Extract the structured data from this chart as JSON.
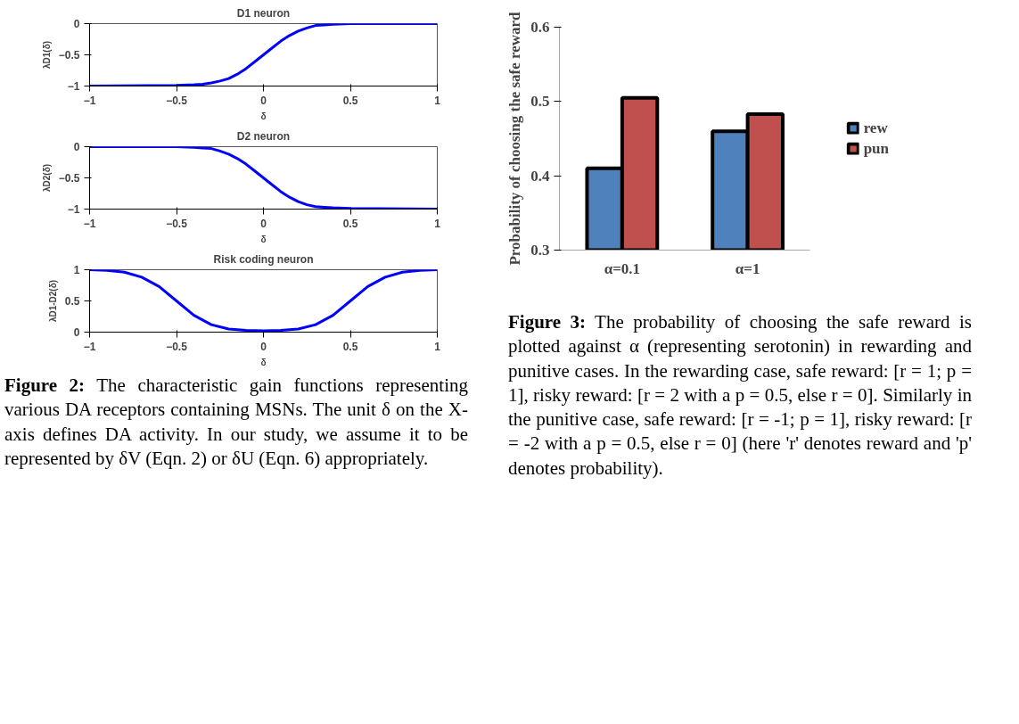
{
  "chart_data": [
    {
      "type": "line",
      "title": "D1 neuron",
      "xlabel": "δ",
      "ylabel": "λD1(δ)",
      "xlim": [
        -1,
        1
      ],
      "xticks": [
        -1,
        -0.5,
        0,
        0.5,
        1
      ],
      "ylim": [
        -1,
        0
      ],
      "yticks": [
        -1,
        -0.5,
        0
      ],
      "grid": false,
      "marker": "none",
      "line_style": "solid",
      "series": [
        {
          "color": "#0000ff",
          "x": [
            -1,
            -0.5,
            -0.4,
            -0.35,
            -0.3,
            -0.25,
            -0.2,
            -0.15,
            -0.1,
            -0.05,
            0,
            0.05,
            0.1,
            0.15,
            0.2,
            0.25,
            0.3,
            0.35,
            0.4,
            0.5,
            1
          ],
          "values": [
            -1,
            -0.99,
            -0.98,
            -0.97,
            -0.95,
            -0.92,
            -0.88,
            -0.81,
            -0.72,
            -0.61,
            -0.5,
            -0.39,
            -0.28,
            -0.19,
            -0.12,
            -0.07,
            -0.03,
            -0.02,
            -0.01,
            0,
            0
          ]
        }
      ]
    },
    {
      "type": "line",
      "title": "D2 neuron",
      "xlabel": "δ",
      "ylabel": "λD2(δ)",
      "xlim": [
        -1,
        1
      ],
      "xticks": [
        -1,
        -0.5,
        0,
        0.5,
        1
      ],
      "ylim": [
        -1,
        0
      ],
      "yticks": [
        -1,
        -0.5,
        0
      ],
      "grid": false,
      "marker": "none",
      "line_style": "solid",
      "series": [
        {
          "color": "#0000ff",
          "x": [
            -1,
            -0.5,
            -0.4,
            -0.35,
            -0.3,
            -0.25,
            -0.2,
            -0.15,
            -0.1,
            -0.05,
            0,
            0.05,
            0.1,
            0.15,
            0.2,
            0.25,
            0.3,
            0.35,
            0.4,
            0.5,
            1
          ],
          "values": [
            0,
            0,
            -0.01,
            -0.02,
            -0.03,
            -0.07,
            -0.12,
            -0.19,
            -0.28,
            -0.39,
            -0.5,
            -0.61,
            -0.72,
            -0.81,
            -0.88,
            -0.93,
            -0.96,
            -0.97,
            -0.98,
            -0.99,
            -1
          ]
        }
      ]
    },
    {
      "type": "line",
      "title": "Risk coding neuron",
      "xlabel": "δ",
      "ylabel": "λD1-D2(δ)",
      "xlim": [
        -1,
        1
      ],
      "xticks": [
        -1,
        -0.5,
        0,
        0.5,
        1
      ],
      "ylim": [
        0,
        1
      ],
      "yticks": [
        0,
        0.5,
        1
      ],
      "grid": false,
      "marker": "none",
      "line_style": "solid",
      "series": [
        {
          "color": "#0000ff",
          "x": [
            -1,
            -0.9,
            -0.8,
            -0.7,
            -0.6,
            -0.5,
            -0.4,
            -0.3,
            -0.2,
            -0.1,
            0,
            0.1,
            0.2,
            0.3,
            0.4,
            0.5,
            0.6,
            0.7,
            0.8,
            0.9,
            1
          ],
          "values": [
            1,
            0.99,
            0.96,
            0.88,
            0.73,
            0.5,
            0.27,
            0.12,
            0.05,
            0.03,
            0.02,
            0.03,
            0.05,
            0.12,
            0.27,
            0.5,
            0.73,
            0.88,
            0.96,
            0.99,
            1
          ]
        }
      ],
      "annotations": [
        "Figure 2: The characteristic gain functions representing various DA receptors containing MSNs. The unit δ on the X-axis defines DA activity. In our study, we assume it to be represented by δV (Eqn. 2) or δU (Eqn. 6) appropriately."
      ]
    },
    {
      "type": "bar",
      "ylabel": "Probability of choosing the safe reward",
      "categories": [
        "α=0.1",
        "α=1"
      ],
      "ylim": [
        0.3,
        0.6
      ],
      "yticks": [
        0.3,
        0.4,
        0.5,
        0.6
      ],
      "grid": false,
      "legend": "right",
      "series": [
        {
          "name": "rew",
          "color": "#4f81bd",
          "values": [
            0.41,
            0.46
          ]
        },
        {
          "name": "pun",
          "color": "#c0504d",
          "values": [
            0.505,
            0.483
          ]
        }
      ],
      "annotations": [
        "Figure 3: The probability of choosing the safe reward is plotted against α (representing serotonin) in rewarding and punitive cases. In the rewarding case, safe reward: [r = 1; p = 1], risky reward: [r = 2 with a p = 0.5, else r = 0]. Similarly in the punitive case, safe reward: [r = -1; p = 1], risky reward: [r = -2 with a p = 0.5, else r = 0] (here 'r' denotes reward and 'p' denotes probability)."
      ]
    }
  ]
}
